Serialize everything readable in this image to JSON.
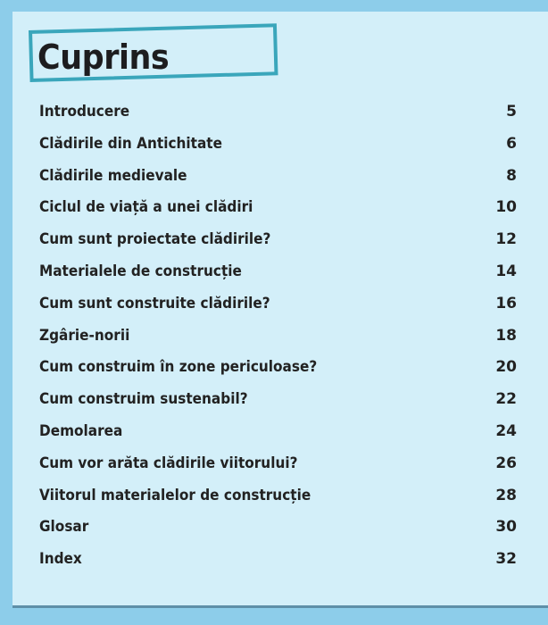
{
  "title": "Cuprins",
  "entries": [
    {
      "label": "Introducere",
      "page": "5"
    },
    {
      "label": "Clădirile din Antichitate",
      "page": "6"
    },
    {
      "label": "Clădirile medievale",
      "page": "8"
    },
    {
      "label": "Ciclul de viață a unei clădiri",
      "page": "10"
    },
    {
      "label": "Cum sunt proiectate clădirile?",
      "page": "12"
    },
    {
      "label": "Materialele de construcție",
      "page": "14"
    },
    {
      "label": "Cum sunt construite clădirile?",
      "page": "16"
    },
    {
      "label": "Zgârie-norii",
      "page": "18"
    },
    {
      "label": "Cum construim în zone periculoase?",
      "page": "20"
    },
    {
      "label": "Cum construim sustenabil?",
      "page": "22"
    },
    {
      "label": "Demolarea",
      "page": "24"
    },
    {
      "label": "Cum vor arăta clădirile viitorului?",
      "page": "26"
    },
    {
      "label": "Viitorul materialelor de construcție",
      "page": "28"
    },
    {
      "label": "Glosar",
      "page": "30"
    },
    {
      "label": "Index",
      "page": "32"
    }
  ],
  "colors": {
    "background": "#8dcdea",
    "panel": "#d3eff9",
    "title_border": "#3aa6bb",
    "text": "#222222"
  }
}
